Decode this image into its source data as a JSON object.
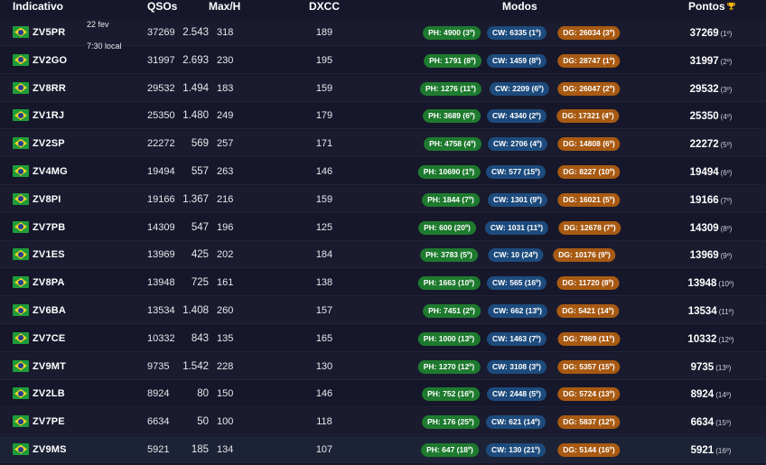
{
  "header": {
    "callsign": "Indicativo",
    "qsos": "QSOs",
    "maxh": "Max/H",
    "dxcc": "DXCC",
    "modes": "Modos",
    "points": "Pontos"
  },
  "info": {
    "date": "22 fev",
    "time": "7:30 local"
  },
  "rows": [
    {
      "call": "ZV5PR",
      "qsos": "37269",
      "rate": "2.543",
      "maxh": "318",
      "dxcc": "189",
      "ph": "PH: 4900 (3º)",
      "cw": "CW: 6335 (1º)",
      "dg": "DG: 26034 (3º)",
      "points": "37269",
      "rank": "(1º)"
    },
    {
      "call": "ZV2GO",
      "qsos": "31997",
      "rate": "2.693",
      "maxh": "230",
      "dxcc": "195",
      "ph": "PH: 1791 (8º)",
      "cw": "CW: 1459 (8º)",
      "dg": "DG: 28747 (1º)",
      "points": "31997",
      "rank": "(2º)"
    },
    {
      "call": "ZV8RR",
      "qsos": "29532",
      "rate": "1.494",
      "maxh": "183",
      "dxcc": "159",
      "ph": "PH: 1276 (11º)",
      "cw": "CW: 2209 (6º)",
      "dg": "DG: 26047 (2º)",
      "points": "29532",
      "rank": "(3º)"
    },
    {
      "call": "ZV1RJ",
      "qsos": "25350",
      "rate": "1.480",
      "maxh": "249",
      "dxcc": "179",
      "ph": "PH: 3689 (6º)",
      "cw": "CW: 4340 (2º)",
      "dg": "DG: 17321 (4º)",
      "points": "25350",
      "rank": "(4º)"
    },
    {
      "call": "ZV2SP",
      "qsos": "22272",
      "rate": "569",
      "maxh": "257",
      "dxcc": "171",
      "ph": "PH: 4758 (4º)",
      "cw": "CW: 2706 (4º)",
      "dg": "DG: 14808 (6º)",
      "points": "22272",
      "rank": "(5º)"
    },
    {
      "call": "ZV4MG",
      "qsos": "19494",
      "rate": "557",
      "maxh": "263",
      "dxcc": "146",
      "ph": "PH: 10690 (1º)",
      "cw": "CW: 577 (15º)",
      "dg": "DG: 8227 (10º)",
      "points": "19494",
      "rank": "(6º)"
    },
    {
      "call": "ZV8PI",
      "qsos": "19166",
      "rate": "1.367",
      "maxh": "216",
      "dxcc": "159",
      "ph": "PH: 1844 (7º)",
      "cw": "CW: 1301 (9º)",
      "dg": "DG: 16021 (5º)",
      "points": "19166",
      "rank": "(7º)"
    },
    {
      "call": "ZV7PB",
      "qsos": "14309",
      "rate": "547",
      "maxh": "196",
      "dxcc": "125",
      "ph": "PH: 600 (20º)",
      "cw": "CW: 1031 (11º)",
      "dg": "DG: 12678 (7º)",
      "points": "14309",
      "rank": "(8º)"
    },
    {
      "call": "ZV1ES",
      "qsos": "13969",
      "rate": "425",
      "maxh": "202",
      "dxcc": "184",
      "ph": "PH: 3783 (5º)",
      "cw": "CW: 10 (24º)",
      "dg": "DG: 10176 (9º)",
      "points": "13969",
      "rank": "(9º)"
    },
    {
      "call": "ZV8PA",
      "qsos": "13948",
      "rate": "725",
      "maxh": "161",
      "dxcc": "138",
      "ph": "PH: 1663 (10º)",
      "cw": "CW: 565 (16º)",
      "dg": "DG: 11720 (8º)",
      "points": "13948",
      "rank": "(10º)"
    },
    {
      "call": "ZV6BA",
      "qsos": "13534",
      "rate": "1.408",
      "maxh": "260",
      "dxcc": "157",
      "ph": "PH: 7451 (2º)",
      "cw": "CW: 662 (13º)",
      "dg": "DG: 5421 (14º)",
      "points": "13534",
      "rank": "(11º)"
    },
    {
      "call": "ZV7CE",
      "qsos": "10332",
      "rate": "843",
      "maxh": "135",
      "dxcc": "165",
      "ph": "PH: 1000 (13º)",
      "cw": "CW: 1463 (7º)",
      "dg": "DG: 7869 (11º)",
      "points": "10332",
      "rank": "(12º)"
    },
    {
      "call": "ZV9MT",
      "qsos": "9735",
      "rate": "1.542",
      "maxh": "228",
      "dxcc": "130",
      "ph": "PH: 1270 (12º)",
      "cw": "CW: 3108 (3º)",
      "dg": "DG: 5357 (15º)",
      "points": "9735",
      "rank": "(13º)"
    },
    {
      "call": "ZV2LB",
      "qsos": "8924",
      "rate": "80",
      "maxh": "150",
      "dxcc": "146",
      "ph": "PH: 752 (16º)",
      "cw": "CW: 2448 (5º)",
      "dg": "DG: 5724 (13º)",
      "points": "8924",
      "rank": "(14º)"
    },
    {
      "call": "ZV7PE",
      "qsos": "6634",
      "rate": "50",
      "maxh": "100",
      "dxcc": "118",
      "ph": "PH: 176 (25º)",
      "cw": "CW: 621 (14º)",
      "dg": "DG: 5837 (12º)",
      "points": "6634",
      "rank": "(15º)"
    },
    {
      "call": "ZV9MS",
      "qsos": "5921",
      "rate": "185",
      "maxh": "134",
      "dxcc": "107",
      "ph": "PH: 647 (18º)",
      "cw": "CW: 130 (21º)",
      "dg": "DG: 5144 (16º)",
      "points": "5921",
      "rank": "(16º)"
    }
  ],
  "icons": {
    "flag": "brazil-flag-icon",
    "trophy": "trophy-icon"
  },
  "colors": {
    "background": "#16172a",
    "phone": "#1e7a2e",
    "cw": "#1d4b7d",
    "digital": "#a85a12",
    "trophy": "#f2b400"
  }
}
